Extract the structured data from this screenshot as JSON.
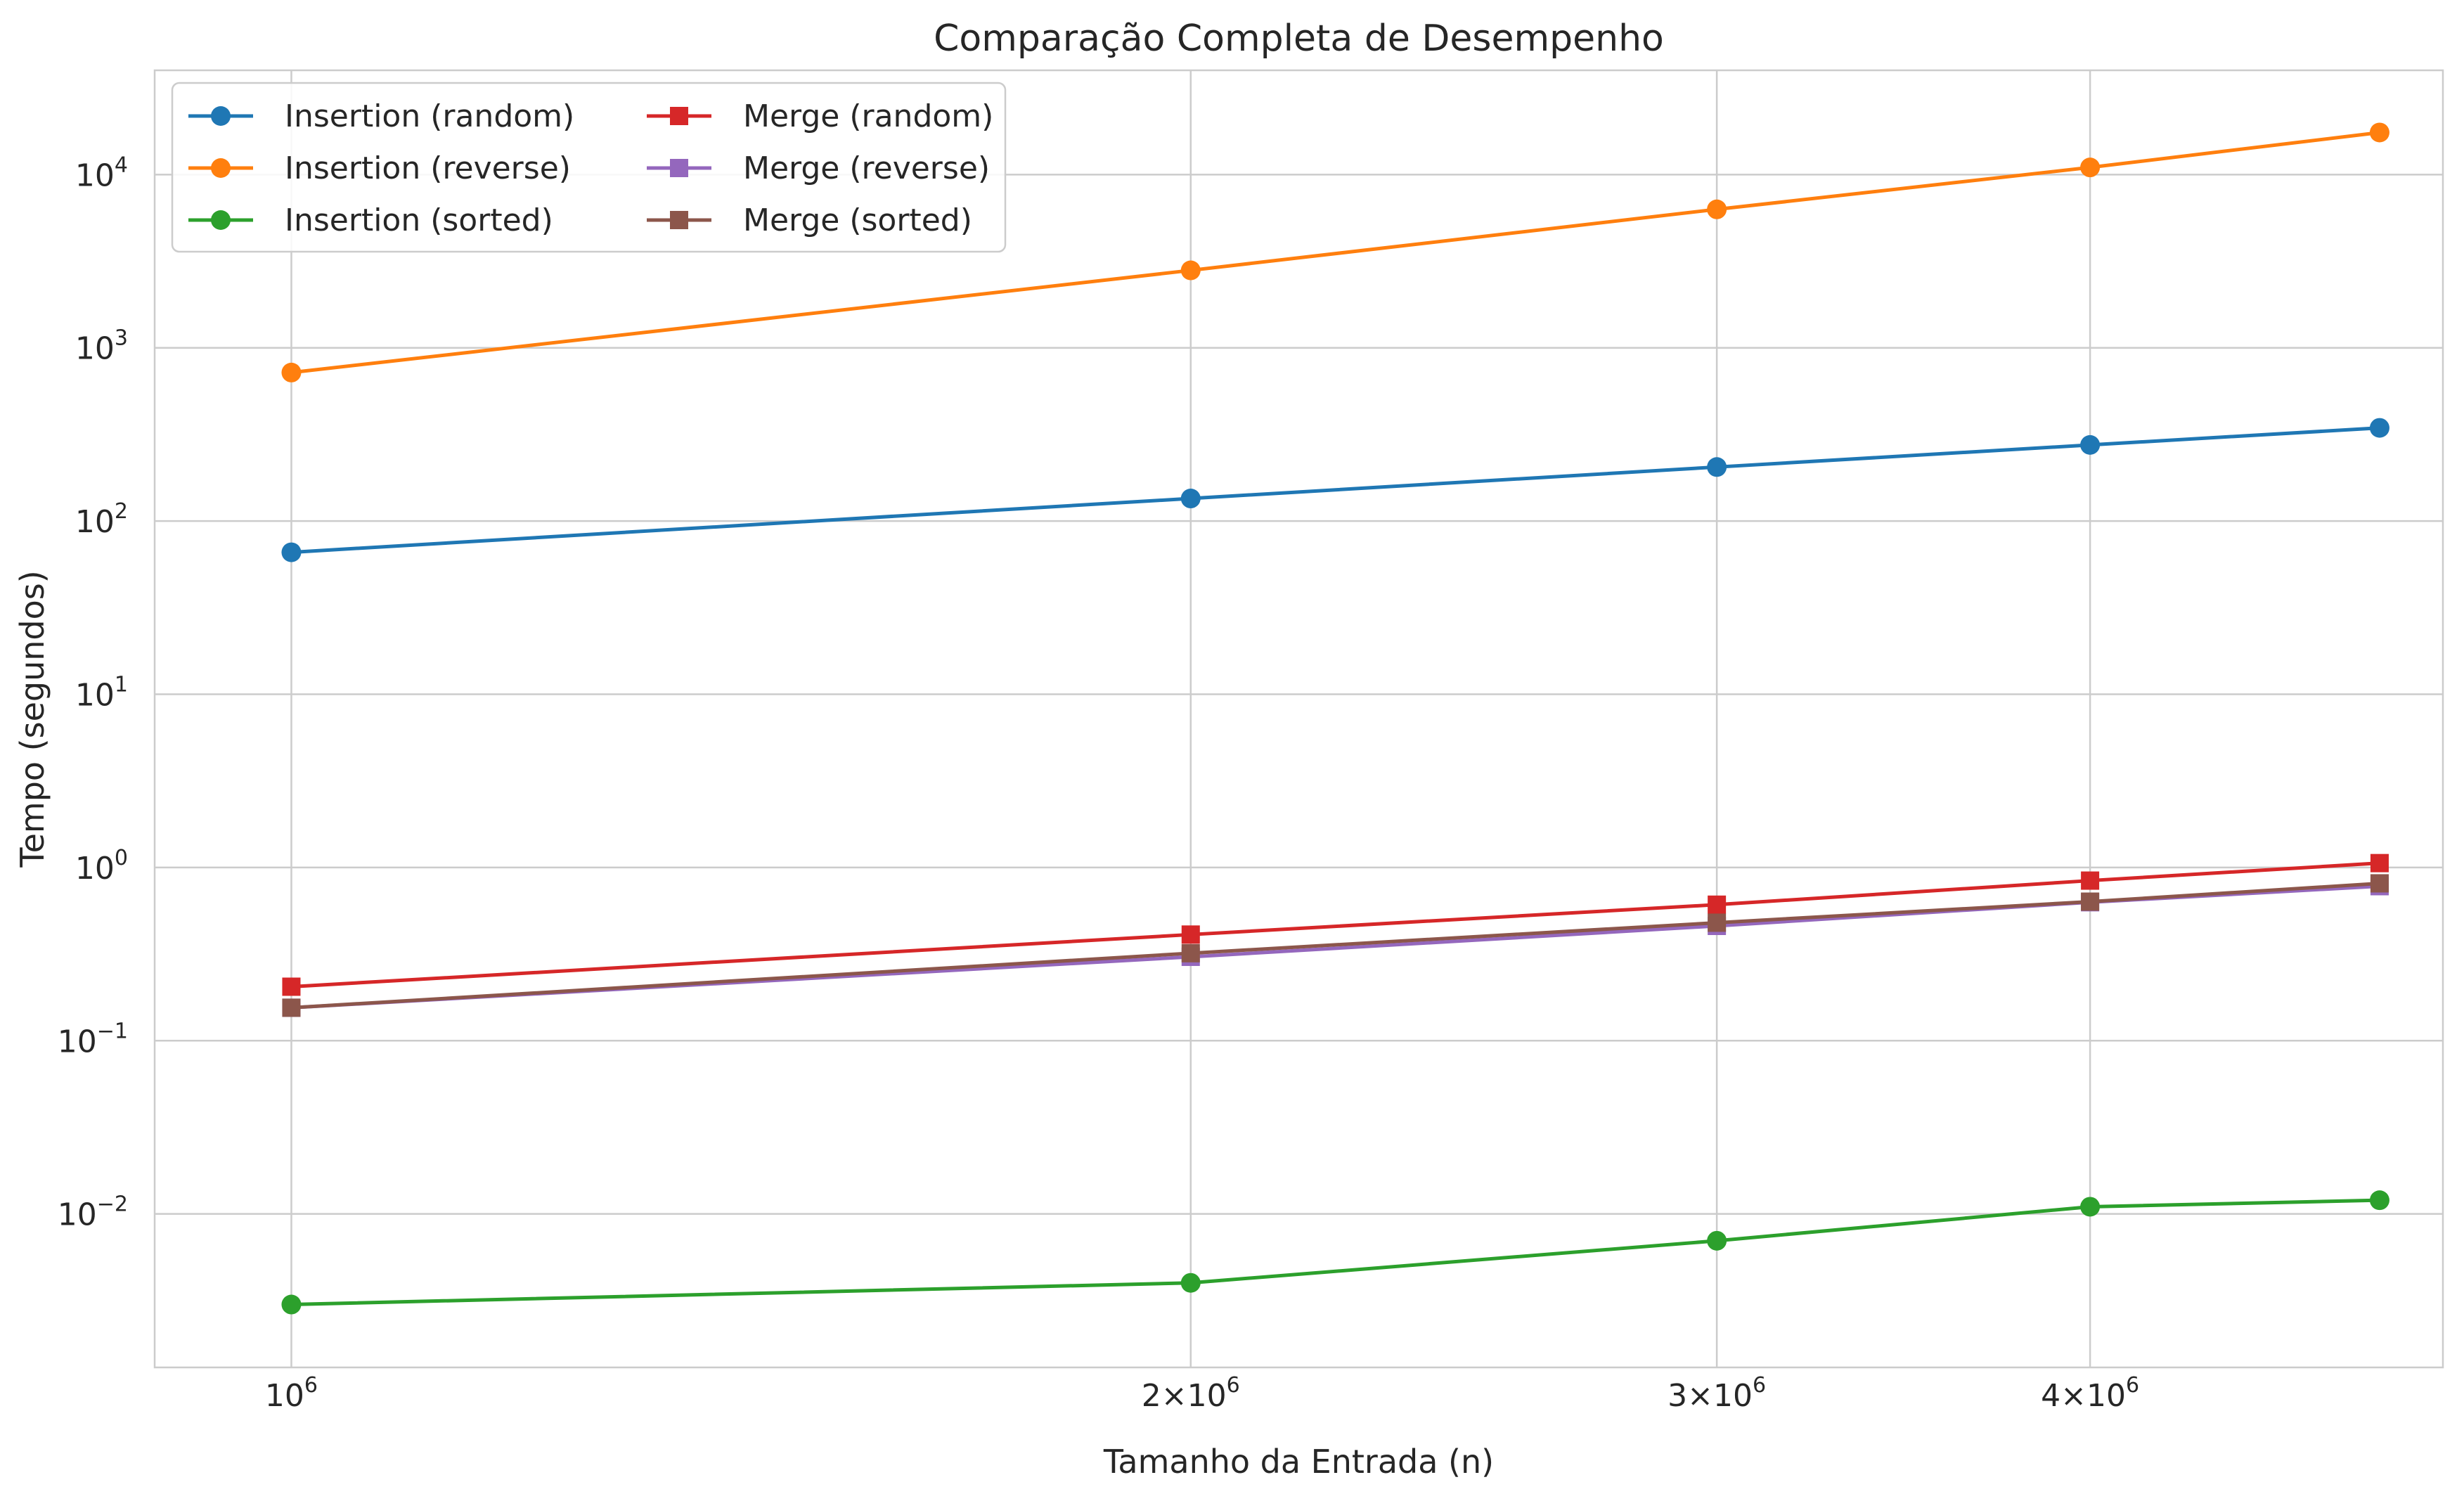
{
  "chart_data": {
    "type": "line",
    "title": "Comparação Completa de Desempenho",
    "xlabel": "Tamanho da Entrada (n)",
    "ylabel": "Tempo (segundos)",
    "xscale": "log",
    "yscale": "log",
    "xlim": [
      900000,
      5250000
    ],
    "ylim": [
      0.0013,
      40000
    ],
    "grid": true,
    "legend_position": "top-left",
    "legend_columns": 2,
    "x": [
      1000000,
      2000000,
      3000000,
      4000000,
      5000000
    ],
    "x_ticks": [
      {
        "value": 1000000,
        "mantissa": "",
        "base": "10",
        "exp": "6"
      },
      {
        "value": 2000000,
        "mantissa": "2×",
        "base": "10",
        "exp": "6"
      },
      {
        "value": 3000000,
        "mantissa": "3×",
        "base": "10",
        "exp": "6"
      },
      {
        "value": 4000000,
        "mantissa": "4×",
        "base": "10",
        "exp": "6"
      }
    ],
    "y_ticks": [
      {
        "value": 0.01,
        "base": "10",
        "exp": "−2"
      },
      {
        "value": 0.1,
        "base": "10",
        "exp": "−1"
      },
      {
        "value": 1,
        "base": "10",
        "exp": "0"
      },
      {
        "value": 10,
        "base": "10",
        "exp": "1"
      },
      {
        "value": 100,
        "base": "10",
        "exp": "2"
      },
      {
        "value": 1000,
        "base": "10",
        "exp": "3"
      },
      {
        "value": 10000,
        "base": "10",
        "exp": "4"
      }
    ],
    "series": [
      {
        "name": "Insertion (random)",
        "color": "#1f77b4",
        "marker": "circle",
        "values": [
          66,
          135,
          205,
          275,
          345
        ]
      },
      {
        "name": "Insertion (reverse)",
        "color": "#ff7f0e",
        "marker": "circle",
        "values": [
          720,
          2800,
          6300,
          11000,
          17500
        ]
      },
      {
        "name": "Insertion (sorted)",
        "color": "#2ca02c",
        "marker": "circle",
        "values": [
          0.003,
          0.004,
          0.007,
          0.011,
          0.012
        ]
      },
      {
        "name": "Merge (random)",
        "color": "#d62728",
        "marker": "square",
        "values": [
          0.205,
          0.41,
          0.61,
          0.84,
          1.06
        ]
      },
      {
        "name": "Merge (reverse)",
        "color": "#9467bd",
        "marker": "square",
        "values": [
          0.155,
          0.305,
          0.46,
          0.63,
          0.78
        ]
      },
      {
        "name": "Merge (sorted)",
        "color": "#8c564b",
        "marker": "square",
        "values": [
          0.155,
          0.32,
          0.48,
          0.635,
          0.81
        ]
      }
    ]
  }
}
